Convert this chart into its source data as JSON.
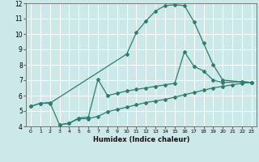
{
  "xlabel": "Humidex (Indice chaleur)",
  "xlim": [
    -0.5,
    23.5
  ],
  "ylim": [
    4,
    12
  ],
  "xticks": [
    0,
    1,
    2,
    3,
    4,
    5,
    6,
    7,
    8,
    9,
    10,
    11,
    12,
    13,
    14,
    15,
    16,
    17,
    18,
    19,
    20,
    21,
    22,
    23
  ],
  "yticks": [
    4,
    5,
    6,
    7,
    8,
    9,
    10,
    11,
    12
  ],
  "bg_color": "#cce8e8",
  "grid_color": "#ffffff",
  "line_color": "#2e7d6e",
  "line1_x": [
    0,
    1,
    2,
    10,
    11,
    12,
    13,
    14,
    15,
    16,
    17,
    18,
    19,
    20,
    22,
    23
  ],
  "line1_y": [
    5.3,
    5.5,
    5.5,
    8.7,
    10.1,
    10.85,
    11.5,
    11.85,
    11.9,
    11.85,
    10.8,
    9.4,
    8.0,
    7.0,
    6.9,
    6.85
  ],
  "line2_x": [
    3,
    4,
    5,
    6,
    7,
    8,
    9,
    10,
    11,
    12,
    13,
    14,
    15,
    16,
    17,
    18,
    19,
    20,
    22,
    23
  ],
  "line2_y": [
    4.1,
    4.2,
    4.55,
    4.6,
    7.05,
    6.0,
    6.15,
    6.3,
    6.4,
    6.5,
    6.6,
    6.7,
    6.8,
    8.85,
    7.9,
    7.6,
    7.0,
    6.85,
    6.9,
    6.85
  ],
  "line3_x": [
    0,
    1,
    2,
    3,
    4,
    5,
    6,
    7,
    8,
    9,
    10,
    11,
    12,
    13,
    14,
    15,
    16,
    17,
    18,
    19,
    20,
    21,
    22,
    23
  ],
  "line3_y": [
    5.3,
    5.5,
    5.55,
    4.1,
    4.2,
    4.5,
    4.5,
    4.65,
    4.95,
    5.1,
    5.25,
    5.4,
    5.55,
    5.65,
    5.75,
    5.9,
    6.05,
    6.2,
    6.35,
    6.5,
    6.6,
    6.7,
    6.8,
    6.85
  ]
}
